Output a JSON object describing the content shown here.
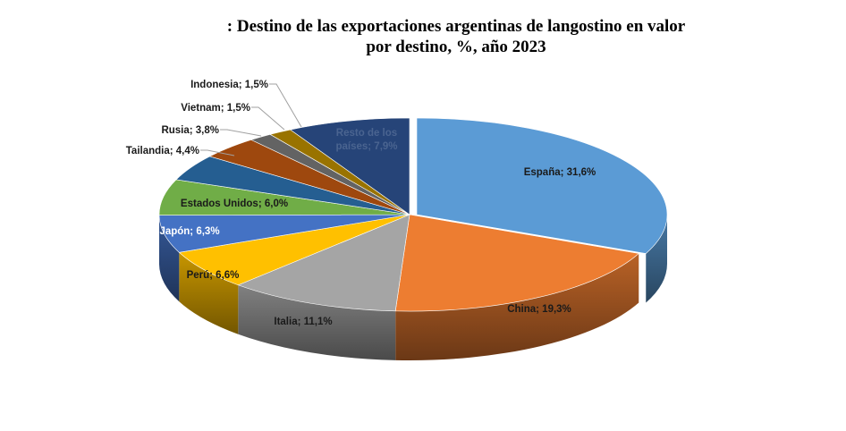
{
  "title_lines": [
    ": Destino de las exportaciones argentinas de langostino en valor",
    "por destino, %, año 2023"
  ],
  "chart_data": {
    "type": "pie",
    "title": ": Destino de las exportaciones argentinas de langostino en valor por destino, %, año 2023",
    "style": "3d-exploded-pie",
    "slices": [
      {
        "name": "España",
        "value": 31.6,
        "label": "España; 31,6%",
        "color": "#5B9BD5",
        "label_color": "#1a1a1a"
      },
      {
        "name": "China",
        "value": 19.3,
        "label": "China; 19,3%",
        "color": "#ED7D31",
        "label_color": "#1a1a1a"
      },
      {
        "name": "Italia",
        "value": 11.1,
        "label": "Italia; 11,1%",
        "color": "#A5A5A5",
        "label_color": "#1a1a1a"
      },
      {
        "name": "Perú",
        "value": 6.6,
        "label": "Perú; 6,6%",
        "color": "#FFC000",
        "label_color": "#1a1a1a"
      },
      {
        "name": "Japón",
        "value": 6.3,
        "label": "Japón; 6,3%",
        "color": "#4472C4",
        "label_color": "#ffffff"
      },
      {
        "name": "Estados Unidos",
        "value": 6.0,
        "label": "Estados Unidos; 6,0%",
        "color": "#70AD47",
        "label_color": "#1a1a1a"
      },
      {
        "name": "Tailandia",
        "value": 4.4,
        "label": "Tailandia; 4,4%",
        "color": "#255E91",
        "label_color": "#1a1a1a"
      },
      {
        "name": "Rusia",
        "value": 3.8,
        "label": "Rusia; 3,8%",
        "color": "#9E480E",
        "label_color": "#1a1a1a"
      },
      {
        "name": "Vietnam",
        "value": 1.5,
        "label": "Vietnam; 1,5%",
        "color": "#636363",
        "label_color": "#1a1a1a"
      },
      {
        "name": "Indonesia",
        "value": 1.5,
        "label": "Indonesia; 1,5%",
        "color": "#997300",
        "label_color": "#1a1a1a"
      },
      {
        "name": "Resto de los países",
        "value": 7.9,
        "label": "Resto de los países; 7,9%",
        "color": "#264478",
        "label_color": "#4a6490"
      }
    ]
  }
}
